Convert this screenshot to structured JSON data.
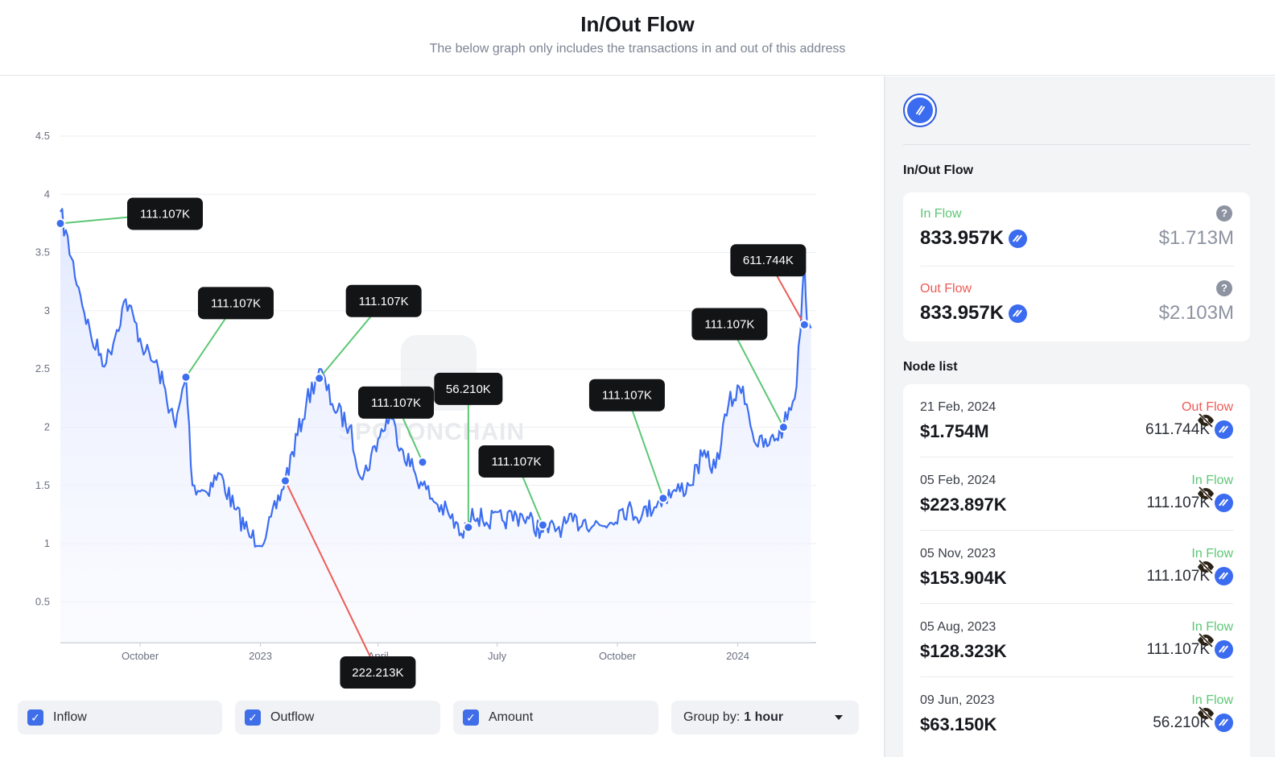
{
  "header": {
    "title": "In/Out Flow",
    "subtitle": "The below graph only includes the transactions in and out of this address"
  },
  "colors": {
    "line": "#3d6ef0",
    "inflow": "#5cc775",
    "outflow": "#ee5a55",
    "accent": "#3f6ee8",
    "label_bg": "#131416"
  },
  "watermark": "SPOTONCHAIN",
  "chart_data": {
    "type": "line",
    "title": "",
    "xlabel": "",
    "ylabel": "",
    "x_ticks": [
      "October",
      "2023",
      "April",
      "July",
      "October",
      "2024"
    ],
    "y_ticks": [
      "0.5",
      "1",
      "1.5",
      "2",
      "2.5",
      "3",
      "3.5",
      "4",
      "4.5"
    ],
    "ylim": [
      0.15,
      4.5
    ],
    "xlim": [
      "2022-08-01",
      "2024-03-01"
    ],
    "grid": true,
    "series": [
      {
        "x": [
          "2022-08-01",
          "2022-08-15",
          "2022-08-25",
          "2022-09-05",
          "2022-09-20",
          "2022-10-05",
          "2022-10-15",
          "2022-10-28",
          "2022-11-05",
          "2022-11-10",
          "2022-11-20",
          "2022-12-01",
          "2022-12-12",
          "2022-12-25",
          "2023-01-05",
          "2023-01-20",
          "2023-02-05",
          "2023-02-15",
          "2023-02-25",
          "2023-03-10",
          "2023-03-20",
          "2023-04-01",
          "2023-04-10",
          "2023-04-20",
          "2023-05-05",
          "2023-05-15",
          "2023-05-25",
          "2023-06-05",
          "2023-06-08",
          "2023-06-12",
          "2023-06-20",
          "2023-07-05",
          "2023-07-20",
          "2023-08-05",
          "2023-08-20",
          "2023-09-05",
          "2023-09-20",
          "2023-10-05",
          "2023-10-20",
          "2023-11-05",
          "2023-11-15",
          "2023-11-25",
          "2023-12-05",
          "2023-12-15",
          "2023-12-25",
          "2024-01-05",
          "2024-01-15",
          "2024-01-25",
          "2024-02-05",
          "2024-02-15",
          "2024-02-21",
          "2024-02-23",
          "2024-02-26"
        ],
        "values": [
          3.85,
          3.2,
          2.75,
          2.55,
          3.1,
          2.65,
          2.5,
          2.0,
          2.45,
          1.5,
          1.45,
          1.6,
          1.3,
          1.05,
          1.05,
          1.55,
          2.2,
          2.5,
          2.2,
          2.0,
          1.55,
          1.9,
          2.1,
          1.8,
          1.5,
          1.35,
          1.25,
          1.05,
          1.15,
          1.3,
          1.2,
          1.2,
          1.25,
          1.1,
          1.15,
          1.2,
          1.15,
          1.3,
          1.25,
          1.4,
          1.45,
          1.5,
          1.75,
          1.65,
          2.2,
          2.35,
          1.85,
          1.85,
          2.0,
          2.35,
          3.45,
          2.9,
          2.85
        ]
      }
    ],
    "annotations": [
      {
        "x": "2022-08-01",
        "y": 3.75,
        "label": "111.107K",
        "type": "inflow"
      },
      {
        "x": "2022-11-05",
        "y": 2.43,
        "label": "111.107K",
        "type": "inflow"
      },
      {
        "x": "2023-01-20",
        "y": 1.54,
        "label": "222.213K",
        "type": "outflow"
      },
      {
        "x": "2023-02-15",
        "y": 2.42,
        "label": "111.107K",
        "type": "inflow"
      },
      {
        "x": "2023-05-05",
        "y": 1.7,
        "label": "111.107K",
        "type": "inflow"
      },
      {
        "x": "2023-06-09",
        "y": 1.14,
        "label": "56.210K",
        "type": "inflow"
      },
      {
        "x": "2023-08-05",
        "y": 1.16,
        "label": "111.107K",
        "type": "inflow"
      },
      {
        "x": "2023-11-05",
        "y": 1.39,
        "label": "111.107K",
        "type": "inflow"
      },
      {
        "x": "2024-02-05",
        "y": 2.0,
        "label": "111.107K",
        "type": "inflow"
      },
      {
        "x": "2024-02-21",
        "y": 2.88,
        "label": "611.744K",
        "type": "outflow"
      }
    ]
  },
  "controls": {
    "inflow_label": "Inflow",
    "outflow_label": "Outflow",
    "amount_label": "Amount",
    "group_by_label": "Group by:",
    "group_by_value": "1 hour"
  },
  "sidebar": {
    "section_title": "In/Out Flow",
    "in_flow": {
      "label": "In Flow",
      "amount": "833.957K",
      "usd": "$1.713M"
    },
    "out_flow": {
      "label": "Out Flow",
      "amount": "833.957K",
      "usd": "$2.103M"
    },
    "help_icon": "?",
    "node_list_title": "Node list",
    "nodes": [
      {
        "date": "21 Feb, 2024",
        "usd": "$1.754M",
        "direction": "Out Flow",
        "amount": "611.744K"
      },
      {
        "date": "05 Feb, 2024",
        "usd": "$223.897K",
        "direction": "In Flow",
        "amount": "111.107K"
      },
      {
        "date": "05 Nov, 2023",
        "usd": "$153.904K",
        "direction": "In Flow",
        "amount": "111.107K"
      },
      {
        "date": "05 Aug, 2023",
        "usd": "$128.323K",
        "direction": "In Flow",
        "amount": "111.107K"
      },
      {
        "date": "09 Jun, 2023",
        "usd": "$63.150K",
        "direction": "In Flow",
        "amount": "56.210K"
      }
    ]
  }
}
